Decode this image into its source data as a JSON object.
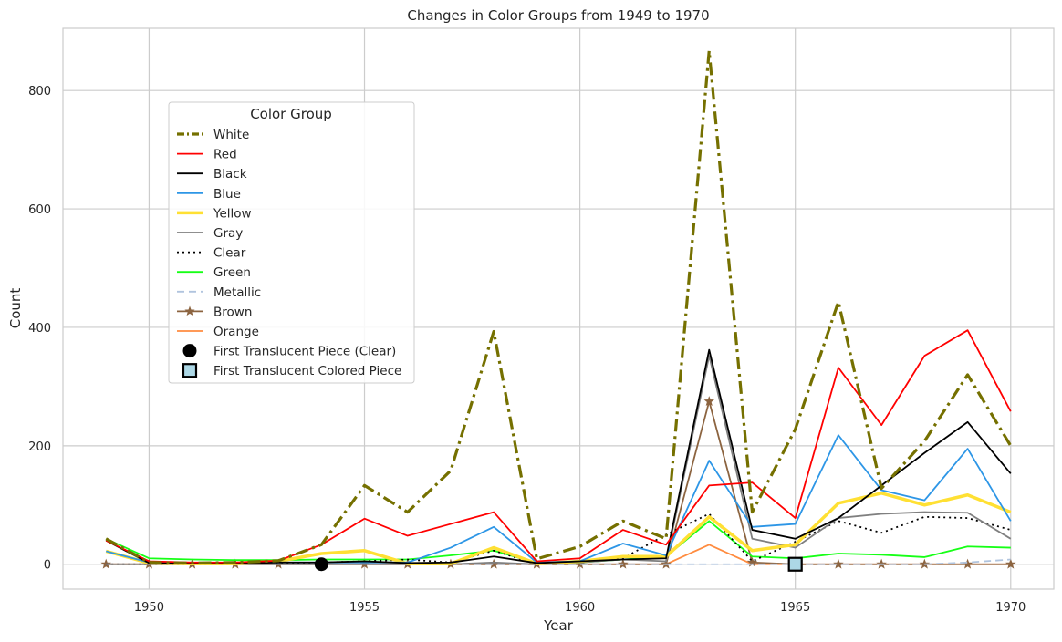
{
  "chart_data": {
    "type": "line",
    "title": "Changes in Color Groups from 1949 to 1970",
    "xlabel": "Year",
    "ylabel": "Count",
    "xlim": [
      1948,
      1971
    ],
    "ylim": [
      -42,
      905
    ],
    "x_ticks": [
      1950,
      1955,
      1960,
      1965,
      1970
    ],
    "y_ticks": [
      0,
      200,
      400,
      600,
      800
    ],
    "grid": true,
    "legend_title": "Color Group",
    "legend_position": "upper-left",
    "x": [
      1949,
      1950,
      1951,
      1952,
      1953,
      1954,
      1955,
      1956,
      1957,
      1958,
      1959,
      1960,
      1961,
      1962,
      1963,
      1964,
      1965,
      1966,
      1967,
      1968,
      1969,
      1970
    ],
    "series": [
      {
        "name": "White",
        "color": "#757000",
        "width": 3.2,
        "dash": "14,5,3,5",
        "marker": "none",
        "values": [
          43,
          3,
          2,
          3,
          6,
          33,
          133,
          88,
          158,
          393,
          9,
          30,
          73,
          43,
          867,
          88,
          228,
          443,
          128,
          208,
          320,
          200
        ]
      },
      {
        "name": "Red",
        "color": "#ff0000",
        "width": 1.8,
        "dash": "",
        "marker": "none",
        "values": [
          40,
          5,
          3,
          3,
          6,
          33,
          77,
          48,
          68,
          88,
          5,
          10,
          58,
          33,
          133,
          138,
          78,
          332,
          235,
          352,
          395,
          258
        ]
      },
      {
        "name": "Black",
        "color": "#000000",
        "width": 1.8,
        "dash": "",
        "marker": "none",
        "values": [
          40,
          2,
          1,
          1,
          3,
          3,
          5,
          2,
          3,
          13,
          2,
          5,
          8,
          10,
          362,
          58,
          43,
          78,
          133,
          188,
          240,
          153
        ]
      },
      {
        "name": "Blue",
        "color": "#2d96e6",
        "width": 1.8,
        "dash": "",
        "marker": "none",
        "values": [
          22,
          3,
          1,
          1,
          3,
          3,
          3,
          3,
          28,
          63,
          3,
          5,
          35,
          15,
          175,
          63,
          68,
          218,
          125,
          108,
          195,
          73
        ]
      },
      {
        "name": "Yellow",
        "color": "#ffe033",
        "width": 3.5,
        "dash": "",
        "marker": "none",
        "values": [
          22,
          2,
          1,
          1,
          5,
          18,
          23,
          1,
          1,
          28,
          1,
          5,
          13,
          13,
          80,
          23,
          33,
          103,
          120,
          100,
          117,
          88
        ]
      },
      {
        "name": "Gray",
        "color": "#7f7f7f",
        "width": 1.8,
        "dash": "",
        "marker": "none",
        "values": [
          0,
          0,
          0,
          0,
          0,
          0,
          0,
          0,
          0,
          3,
          0,
          3,
          8,
          5,
          352,
          43,
          28,
          78,
          85,
          88,
          87,
          43
        ]
      },
      {
        "name": "Clear",
        "color": "#000000",
        "width": 1.8,
        "dash": "2,4",
        "marker": "none",
        "values": [
          0,
          0,
          0,
          0,
          2,
          3,
          5,
          8,
          3,
          23,
          0,
          5,
          10,
          50,
          85,
          5,
          38,
          73,
          53,
          80,
          78,
          58
        ]
      },
      {
        "name": "Green",
        "color": "#16ff16",
        "width": 1.8,
        "dash": "",
        "marker": "none",
        "values": [
          43,
          10,
          8,
          7,
          7,
          8,
          8,
          8,
          15,
          23,
          2,
          3,
          8,
          13,
          73,
          13,
          10,
          18,
          16,
          12,
          30,
          28
        ]
      },
      {
        "name": "Metallic",
        "color": "#b0c4de",
        "width": 1.8,
        "dash": "8,5",
        "marker": "none",
        "values": [
          0,
          0,
          0,
          0,
          0,
          0,
          0,
          0,
          0,
          0,
          0,
          0,
          0,
          0,
          0,
          0,
          0,
          0,
          0,
          0,
          3,
          8
        ]
      },
      {
        "name": "Brown",
        "color": "#8c6440",
        "width": 1.8,
        "dash": "",
        "marker": "star",
        "values": [
          0,
          0,
          0,
          0,
          0,
          0,
          0,
          0,
          0,
          0,
          0,
          0,
          0,
          0,
          275,
          3,
          0,
          0,
          0,
          0,
          0,
          0
        ]
      },
      {
        "name": "Orange",
        "color": "#ff8c40",
        "width": 1.8,
        "dash": "",
        "marker": "none",
        "values": [
          0,
          0,
          0,
          0,
          0,
          0,
          0,
          0,
          0,
          0,
          0,
          0,
          0,
          0,
          33,
          0,
          0,
          0,
          0,
          0,
          0,
          0
        ]
      }
    ],
    "annotations": [
      {
        "label": "First Translucent Piece (Clear)",
        "x": 1954,
        "y": 0,
        "marker": "circle",
        "fill": "#000000",
        "edge": "#000000"
      },
      {
        "label": "First Translucent Colored Piece",
        "x": 1965,
        "y": 0,
        "marker": "square",
        "fill": "#add8e6",
        "edge": "#000000"
      }
    ]
  }
}
